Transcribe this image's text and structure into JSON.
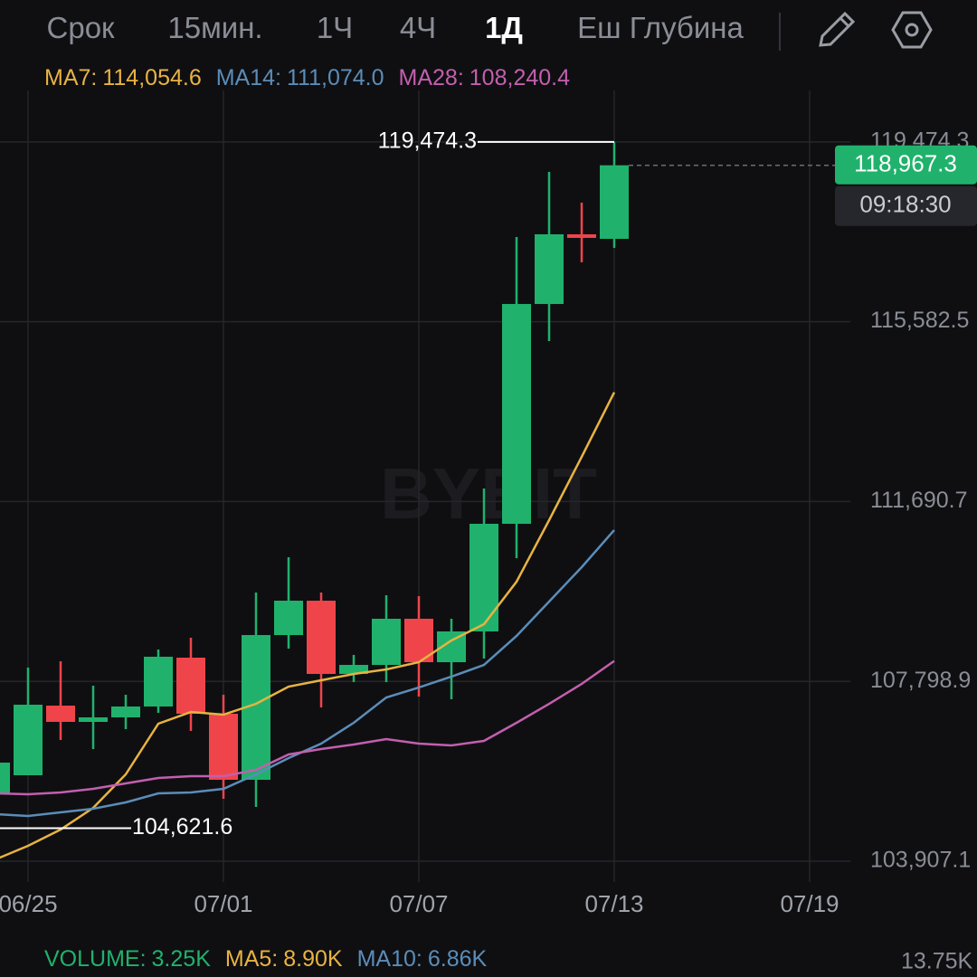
{
  "toolbar": {
    "tabs": [
      "Срок",
      "15мин.",
      "1Ч",
      "4Ч",
      "1Д",
      "Еш Глубина"
    ],
    "active": 4
  },
  "chart_data": {
    "type": "candlestick",
    "watermark": "BYBIT",
    "categories": [
      null,
      "06/25",
      null,
      null,
      null,
      null,
      null,
      "07/01",
      null,
      null,
      null,
      null,
      null,
      "07/07",
      null,
      null,
      null,
      null,
      null,
      "07/13",
      null,
      null,
      null,
      null,
      null,
      "07/19"
    ],
    "open": [
      105356,
      105767,
      107274,
      106922,
      107020,
      107255,
      108312,
      107098,
      105669,
      108801,
      109545,
      107960,
      108155,
      109154,
      108214,
      108880,
      111209,
      115966,
      117474,
      117376,
      null,
      null,
      null,
      null,
      null,
      null
    ],
    "close": [
      106041,
      107294,
      106922,
      107020,
      107255,
      108332,
      107098,
      105669,
      108801,
      109545,
      107960,
      108155,
      109154,
      108214,
      108880,
      111209,
      115966,
      117474,
      117396,
      118967.3,
      null,
      null,
      null,
      null,
      null,
      null
    ],
    "high": [
      106041,
      108097,
      108234,
      107705,
      107509,
      108488,
      108743,
      107509,
      109722,
      110485,
      109722,
      108371,
      109663,
      109643,
      109154,
      111973,
      117415,
      118825,
      118159,
      119474.3,
      null,
      null,
      null,
      null,
      null,
      null
    ],
    "low": [
      105317,
      105767,
      106530,
      106335,
      106765,
      107118,
      106726,
      105258,
      105082,
      108508,
      107235,
      107783,
      107783,
      107470,
      107411,
      108292,
      110465,
      115164,
      116867,
      117180,
      null,
      null,
      null,
      null,
      null,
      null
    ],
    "up_color": "#20b26c",
    "down_color": "#ef454a",
    "series": [
      {
        "name": "MA7:",
        "legend_value": "114,054.6",
        "color": "#e8b342",
        "values": [
          103946,
          104240,
          104592,
          105062,
          105786,
          106883,
          107137,
          107078,
          107313,
          107685,
          107822,
          107959,
          108057,
          108214,
          108684,
          109036,
          109956,
          111288,
          112658,
          114054.6,
          null,
          null,
          null,
          null,
          null,
          null
        ]
      },
      {
        "name": "MA14:",
        "legend_value": "111,074.0",
        "color": "#5b8db8",
        "values": [
          104925,
          104886,
          104964,
          105042,
          105180,
          105375,
          105395,
          105473,
          105786,
          106139,
          106452,
          106902,
          107450,
          107666,
          107901,
          108155,
          108782,
          109526,
          110270,
          111074.0,
          null,
          null,
          null,
          null,
          null,
          null
        ]
      },
      {
        "name": "MA28:",
        "legend_value": "108,240.4",
        "color": "#c35fae",
        "values": [
          105375,
          105356,
          105395,
          105473,
          105591,
          105708,
          105747,
          105747,
          105884,
          106217,
          106335,
          106432,
          106550,
          106452,
          106413,
          106511,
          106902,
          107313,
          107744,
          108240.4,
          null,
          null,
          null,
          null,
          null,
          null
        ]
      }
    ],
    "ylim": [
      103456.8,
      120586.7
    ],
    "yticks": [
      {
        "value": 103907.1,
        "label": "103,907.1"
      },
      {
        "value": 107798.9,
        "label": "107,798.9"
      },
      {
        "value": 111690.7,
        "label": "111,690.7"
      },
      {
        "value": 115582.5,
        "label": "115,582.5"
      },
      {
        "value": 119474.3,
        "label": "119,474.3"
      }
    ],
    "grid": true,
    "high_mark": {
      "value": 119474.3,
      "label": "119,474.3"
    },
    "low_mark": {
      "value": 104621.6,
      "label": "104,621.6"
    },
    "current_price": {
      "value": 118967.3,
      "label": "118,967.3"
    },
    "countdown": "09:18:30",
    "volume_legend": [
      {
        "name": "VOLUME:",
        "label": "3.25K",
        "color": "#20b26c"
      },
      {
        "name": "MA5:",
        "label": "8.90K",
        "color": "#e8b342"
      },
      {
        "name": "MA10:",
        "label": "6.86K",
        "color": "#5b8db8"
      }
    ],
    "volume_axis_label": "13.75K"
  }
}
